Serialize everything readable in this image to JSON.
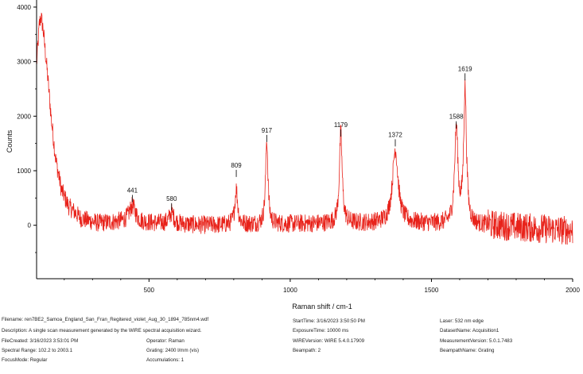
{
  "chart_data": {
    "type": "line",
    "xlabel": "Raman shift / cm-1",
    "ylabel": "Counts",
    "xlim": [
      102,
      2000
    ],
    "ylim": [
      -980,
      4130
    ],
    "x_ticks": [
      "500",
      "1000",
      "1500",
      "2000"
    ],
    "y_ticks": [
      "0",
      "1000",
      "2000",
      "3000",
      "4000"
    ],
    "grid": false,
    "series": [
      {
        "color": "#e8221a",
        "baseline_noise": 170,
        "profile": [
          {
            "x": 102,
            "y": 2950
          },
          {
            "x": 112,
            "y": 3700
          },
          {
            "x": 118,
            "y": 3820
          },
          {
            "x": 125,
            "y": 3600
          },
          {
            "x": 140,
            "y": 2800
          },
          {
            "x": 155,
            "y": 1900
          },
          {
            "x": 170,
            "y": 1200
          },
          {
            "x": 190,
            "y": 650
          },
          {
            "x": 215,
            "y": 350
          },
          {
            "x": 260,
            "y": 120
          },
          {
            "x": 320,
            "y": 40
          },
          {
            "x": 400,
            "y": 60
          },
          {
            "x": 700,
            "y": 0
          },
          {
            "x": 1100,
            "y": 30
          },
          {
            "x": 1400,
            "y": 40
          },
          {
            "x": 1700,
            "y": 0
          },
          {
            "x": 2000,
            "y": -100
          }
        ],
        "peaks": [
          {
            "x": 441,
            "height": 300,
            "width": 14
          },
          {
            "x": 580,
            "height": 200,
            "width": 10
          },
          {
            "x": 809,
            "height": 650,
            "width": 6
          },
          {
            "x": 917,
            "height": 1550,
            "width": 5
          },
          {
            "x": 1179,
            "height": 1650,
            "width": 6
          },
          {
            "x": 1372,
            "height": 1350,
            "width": 12
          },
          {
            "x": 1588,
            "height": 1750,
            "width": 7
          },
          {
            "x": 1619,
            "height": 2450,
            "width": 6
          }
        ]
      }
    ],
    "peak_labels": [
      {
        "x": 441,
        "label": "441",
        "y": 600
      },
      {
        "x": 580,
        "label": "580",
        "y": 450
      },
      {
        "x": 809,
        "label": "809",
        "y": 1060
      },
      {
        "x": 917,
        "label": "917",
        "y": 1700
      },
      {
        "x": 1179,
        "label": "1179",
        "y": 1800
      },
      {
        "x": 1372,
        "label": "1372",
        "y": 1620
      },
      {
        "x": 1588,
        "label": "1588",
        "y": 1950
      },
      {
        "x": 1619,
        "label": "1619",
        "y": 2830
      }
    ]
  },
  "metadata": {
    "filename": "Filename: ren7BE2_Samoa_England_San_Fran_Regitered_violet_Aug_30_1894_785nm4.wdf",
    "description": "Description: A single scan measurement generated by the WiRE spectral acquisition wizard.",
    "file_created": "FileCreated: 3/16/2023 3:53:01 PM",
    "spectral_range": "Spectral Range: 102.2 to 2003.1",
    "focus_mode": "FocusMode: Regular",
    "operator": "Operator: Raman",
    "grating": "Grating: 2400 l/mm (vis)",
    "accumulations": "Accumulations: 1",
    "start_time": "StartTime: 3/16/2023 3:50:50 PM",
    "exposure_time": "ExposureTime: 10000 ms",
    "wire_version": "WiREVersion: WiRE 5.4.0.17909",
    "beampath": "Beampath: 2",
    "laser": "Laser: 532 nm edge",
    "dataset_name": "DatasetName: Acquisition1",
    "measurement_version": "MeasurementVersion: 5.0.1.7483",
    "beampath_name": "BeampathName: Grating"
  }
}
